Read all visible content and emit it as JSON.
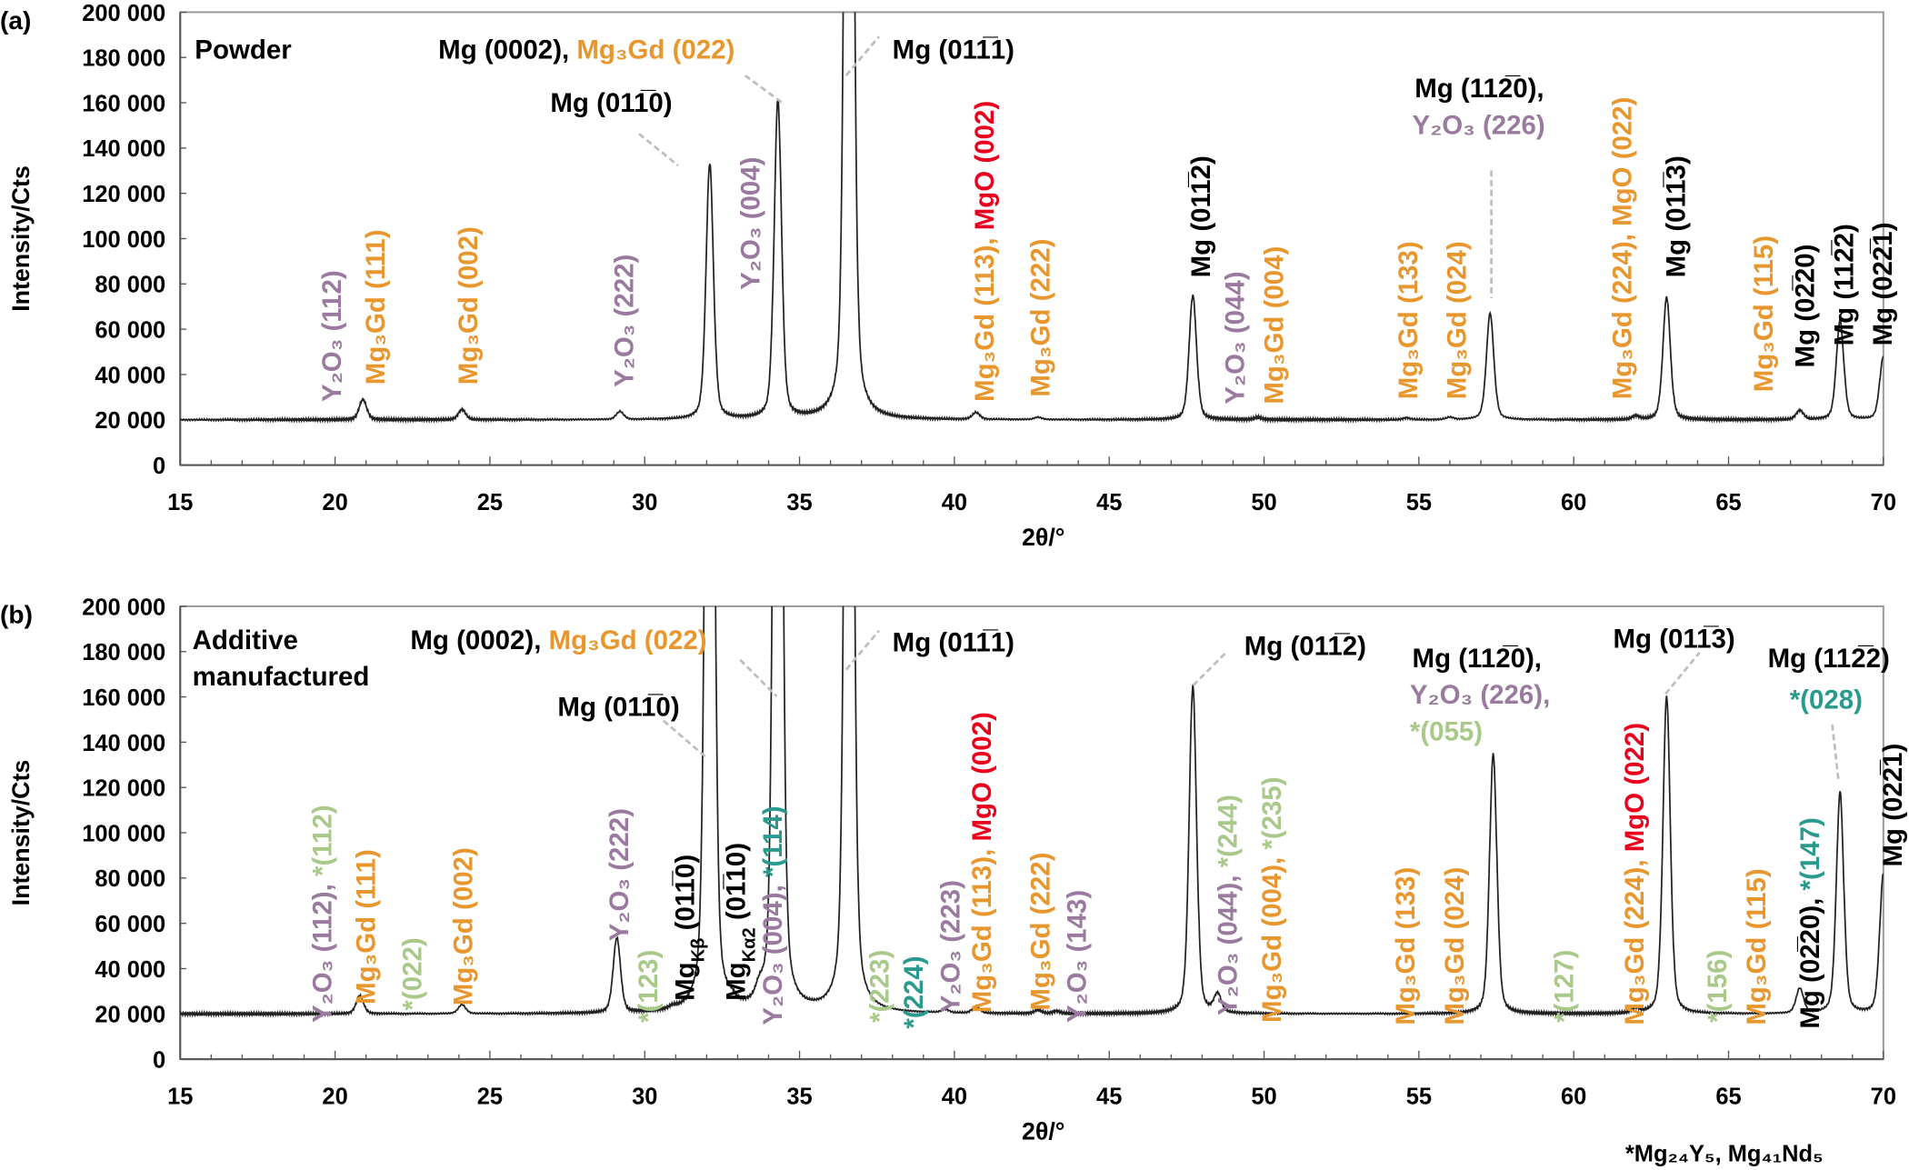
{
  "colors": {
    "black": "#000000",
    "purple": "#9a7a9e",
    "orange": "#e8962e",
    "red": "#e8001c",
    "green": "#a9c98a",
    "teal": "#2a9a8e",
    "trace": "#222222",
    "frame": "#9a9a9a",
    "leader": "#bdbdbd"
  },
  "footnote": [
    {
      "text": "*Mg₂₄Y₅, Mg₄₁Nd₅",
      "color": "black"
    }
  ],
  "chart_data": [
    {
      "type": "line",
      "panel_label": "(a)",
      "xlabel": "2θ/°",
      "ylabel": "Intensity/Cts",
      "xlim": [
        15,
        70
      ],
      "ylim": [
        0,
        200000
      ],
      "grid": false,
      "xticks": [
        "15",
        "20",
        "25",
        "30",
        "35",
        "40",
        "45",
        "50",
        "55",
        "60",
        "65",
        "70"
      ],
      "yticks": [
        "0",
        "20 000",
        "40 000",
        "60 000",
        "80 000",
        "100 000",
        "120 000",
        "140 000",
        "160 000",
        "180 000",
        "200 000"
      ],
      "baseline": 20000,
      "peaks": [
        {
          "two_theta": 20.9,
          "intensity": 29000
        },
        {
          "two_theta": 24.1,
          "intensity": 24500
        },
        {
          "two_theta": 29.2,
          "intensity": 23500
        },
        {
          "two_theta": 32.1,
          "intensity": 133000
        },
        {
          "two_theta": 34.3,
          "intensity": 161000
        },
        {
          "two_theta": 36.6,
          "intensity": 600000
        },
        {
          "two_theta": 40.7,
          "intensity": 23000
        },
        {
          "two_theta": 42.7,
          "intensity": 21000
        },
        {
          "two_theta": 47.7,
          "intensity": 75000
        },
        {
          "two_theta": 49.8,
          "intensity": 21000
        },
        {
          "two_theta": 54.6,
          "intensity": 20800
        },
        {
          "two_theta": 56.0,
          "intensity": 21000
        },
        {
          "two_theta": 57.3,
          "intensity": 67000
        },
        {
          "two_theta": 62.0,
          "intensity": 21500
        },
        {
          "two_theta": 63.0,
          "intensity": 74000
        },
        {
          "two_theta": 67.3,
          "intensity": 24000
        },
        {
          "two_theta": 68.6,
          "intensity": 64000
        },
        {
          "two_theta": 70.0,
          "intensity": 48000
        }
      ],
      "annotations": [
        {
          "segments": [
            {
              "text": "Powder",
              "color": "black"
            }
          ]
        },
        {
          "segments": [
            {
              "text": "Mg (0002), ",
              "color": "black"
            },
            {
              "text": "Mg₃Gd (022)",
              "color": "orange"
            }
          ]
        },
        {
          "segments": [
            {
              "text": "Mg (011̅1)",
              "color": "black"
            }
          ]
        },
        {
          "segments": [
            {
              "text": "Mg (011̅0)",
              "color": "black"
            }
          ]
        },
        {
          "segments": [
            {
              "text": "Mg (112̅0),",
              "color": "black"
            }
          ]
        },
        {
          "segments": [
            {
              "text": "Y₂O₃ (226)",
              "color": "purple"
            }
          ]
        },
        {
          "segments": [
            {
              "text": "Y₂O₃ (112)",
              "color": "purple"
            }
          ]
        },
        {
          "segments": [
            {
              "text": "Mg₃Gd (111)",
              "color": "orange"
            }
          ]
        },
        {
          "segments": [
            {
              "text": "Mg₃Gd (002)",
              "color": "orange"
            }
          ]
        },
        {
          "segments": [
            {
              "text": "Y₂O₃ (222)",
              "color": "purple"
            }
          ]
        },
        {
          "segments": [
            {
              "text": "Y₂O₃ (004)",
              "color": "purple"
            }
          ]
        },
        {
          "segments": [
            {
              "text": "Mg₃Gd (113), ",
              "color": "orange"
            },
            {
              "text": "MgO (002)",
              "color": "red"
            }
          ]
        },
        {
          "segments": [
            {
              "text": "Mg₃Gd (222)",
              "color": "orange"
            }
          ]
        },
        {
          "segments": [
            {
              "text": "Mg (011̅2)",
              "color": "black"
            }
          ]
        },
        {
          "segments": [
            {
              "text": "Y₂O₃ (044)",
              "color": "purple"
            }
          ]
        },
        {
          "segments": [
            {
              "text": "Mg₃Gd (004)",
              "color": "orange"
            }
          ]
        },
        {
          "segments": [
            {
              "text": "Mg₃Gd (133)",
              "color": "orange"
            }
          ]
        },
        {
          "segments": [
            {
              "text": "Mg₃Gd (024)",
              "color": "orange"
            }
          ]
        },
        {
          "segments": [
            {
              "text": "Mg₃Gd (224), MgO (022)",
              "color": "orange"
            }
          ]
        },
        {
          "segments": [
            {
              "text": "Mg (011̅3)",
              "color": "black"
            }
          ]
        },
        {
          "segments": [
            {
              "text": "Mg₃Gd (115)",
              "color": "orange"
            }
          ]
        },
        {
          "segments": [
            {
              "text": "Mg (02̅20)",
              "color": "black"
            }
          ]
        },
        {
          "segments": [
            {
              "text": "Mg (112̅2)",
              "color": "black"
            }
          ]
        },
        {
          "segments": [
            {
              "text": "Mg (022̅1)",
              "color": "black"
            }
          ]
        }
      ]
    },
    {
      "type": "line",
      "panel_label": "(b)",
      "xlabel": "2θ/°",
      "ylabel": "Intensity/Cts",
      "xlim": [
        15,
        70
      ],
      "ylim": [
        0,
        200000
      ],
      "grid": false,
      "xticks": [
        "15",
        "20",
        "25",
        "30",
        "35",
        "40",
        "45",
        "50",
        "55",
        "60",
        "65",
        "70"
      ],
      "yticks": [
        "0",
        "20 000",
        "40 000",
        "60 000",
        "80 000",
        "100 000",
        "120 000",
        "140 000",
        "160 000",
        "180 000",
        "200 000"
      ],
      "baseline": 20000,
      "peaks": [
        {
          "two_theta": 20.8,
          "intensity": 28000
        },
        {
          "two_theta": 24.1,
          "intensity": 24000
        },
        {
          "two_theta": 29.1,
          "intensity": 53000
        },
        {
          "two_theta": 30.9,
          "intensity": 21000
        },
        {
          "two_theta": 32.1,
          "intensity": 600000
        },
        {
          "two_theta": 32.8,
          "intensity": 22000
        },
        {
          "two_theta": 33.7,
          "intensity": 25000
        },
        {
          "two_theta": 34.3,
          "intensity": 600000
        },
        {
          "two_theta": 36.6,
          "intensity": 600000
        },
        {
          "two_theta": 39.7,
          "intensity": 21500
        },
        {
          "two_theta": 40.7,
          "intensity": 23000
        },
        {
          "two_theta": 42.7,
          "intensity": 21500
        },
        {
          "two_theta": 43.3,
          "intensity": 21000
        },
        {
          "two_theta": 47.7,
          "intensity": 165000
        },
        {
          "two_theta": 48.5,
          "intensity": 28000
        },
        {
          "two_theta": 57.4,
          "intensity": 135000
        },
        {
          "two_theta": 62.0,
          "intensity": 22000
        },
        {
          "two_theta": 63.0,
          "intensity": 160000
        },
        {
          "two_theta": 67.3,
          "intensity": 31000
        },
        {
          "two_theta": 68.6,
          "intensity": 118000
        },
        {
          "two_theta": 70.0,
          "intensity": 82000
        }
      ],
      "annotations": [
        {
          "segments": [
            {
              "text": "Additive",
              "color": "black"
            }
          ]
        },
        {
          "segments": [
            {
              "text": "manufactured",
              "color": "black"
            }
          ]
        },
        {
          "segments": [
            {
              "text": "Mg (0002), ",
              "color": "black"
            },
            {
              "text": "Mg₃Gd (022)",
              "color": "orange"
            }
          ]
        },
        {
          "segments": [
            {
              "text": "Mg (011̅1)",
              "color": "black"
            }
          ]
        },
        {
          "segments": [
            {
              "text": "Mg (011̅0)",
              "color": "black"
            }
          ]
        },
        {
          "segments": [
            {
              "text": "Mg (011̅2)",
              "color": "black"
            }
          ]
        },
        {
          "segments": [
            {
              "text": "Mg (112̅0),",
              "color": "black"
            }
          ]
        },
        {
          "segments": [
            {
              "text": "Y₂O₃ (226),",
              "color": "purple"
            }
          ]
        },
        {
          "segments": [
            {
              "text": "*(055)",
              "color": "green"
            }
          ]
        },
        {
          "segments": [
            {
              "text": "Mg (011̅3)",
              "color": "black"
            }
          ]
        },
        {
          "segments": [
            {
              "text": "Mg (112̅2)",
              "color": "black"
            }
          ]
        },
        {
          "segments": [
            {
              "text": "*(028)",
              "color": "teal"
            }
          ]
        },
        {
          "segments": [
            {
              "text": "Y₂O₃ (112), ",
              "color": "purple"
            },
            {
              "text": "*(112)",
              "color": "green"
            }
          ]
        },
        {
          "segments": [
            {
              "text": "Mg₃Gd (111)",
              "color": "orange"
            }
          ]
        },
        {
          "segments": [
            {
              "text": "*(022)",
              "color": "green"
            }
          ]
        },
        {
          "segments": [
            {
              "text": "Mg₃Gd (002)",
              "color": "orange"
            }
          ]
        },
        {
          "segments": [
            {
              "text": "Y₂O₃ (222)",
              "color": "purple"
            }
          ]
        },
        {
          "segments": [
            {
              "text": "*(123)",
              "color": "green"
            }
          ]
        },
        {
          "segments": [
            {
              "text": "Mg",
              "color": "black"
            },
            {
              "text": "Kβ",
              "color": "black",
              "sub": true
            },
            {
              "text": " (011̅0)",
              "color": "black"
            }
          ]
        },
        {
          "segments": [
            {
              "text": "Mg",
              "color": "black"
            },
            {
              "text": "Kα2",
              "color": "black",
              "sub": true
            },
            {
              "text": " (01̅10)",
              "color": "black"
            }
          ]
        },
        {
          "segments": [
            {
              "text": "Y₂O₃ (004), ",
              "color": "purple"
            },
            {
              "text": "*(114)",
              "color": "teal"
            }
          ]
        },
        {
          "segments": [
            {
              "text": "*(223)",
              "color": "green"
            }
          ]
        },
        {
          "segments": [
            {
              "text": "*(224)",
              "color": "teal"
            }
          ]
        },
        {
          "segments": [
            {
              "text": "Y₂O₃ (223)",
              "color": "purple"
            }
          ]
        },
        {
          "segments": [
            {
              "text": "Mg₃Gd (113), ",
              "color": "orange"
            },
            {
              "text": "MgO (002)",
              "color": "red"
            }
          ]
        },
        {
          "segments": [
            {
              "text": "Mg₃Gd (222)",
              "color": "orange"
            }
          ]
        },
        {
          "segments": [
            {
              "text": "Y₂O₃ (143)",
              "color": "purple"
            }
          ]
        },
        {
          "segments": [
            {
              "text": "Y₂O₃ (044), ",
              "color": "purple"
            },
            {
              "text": "*(244)",
              "color": "green"
            }
          ]
        },
        {
          "segments": [
            {
              "text": "Mg₃Gd (004), ",
              "color": "orange"
            },
            {
              "text": "*(235)",
              "color": "green"
            }
          ]
        },
        {
          "segments": [
            {
              "text": "Mg₃Gd (133)",
              "color": "orange"
            }
          ]
        },
        {
          "segments": [
            {
              "text": "Mg₃Gd (024)",
              "color": "orange"
            }
          ]
        },
        {
          "segments": [
            {
              "text": "*(127)",
              "color": "green"
            }
          ]
        },
        {
          "segments": [
            {
              "text": "Mg₃Gd (224), ",
              "color": "orange"
            },
            {
              "text": "MgO (022)",
              "color": "red"
            }
          ]
        },
        {
          "segments": [
            {
              "text": "*(156)",
              "color": "green"
            }
          ]
        },
        {
          "segments": [
            {
              "text": "Mg₃Gd (115)",
              "color": "orange"
            }
          ]
        },
        {
          "segments": [
            {
              "text": "Mg (02̅20), ",
              "color": "black"
            },
            {
              "text": "*(147)",
              "color": "teal"
            }
          ]
        },
        {
          "segments": [
            {
              "text": "Mg (022̅1)",
              "color": "black"
            }
          ]
        }
      ]
    }
  ]
}
